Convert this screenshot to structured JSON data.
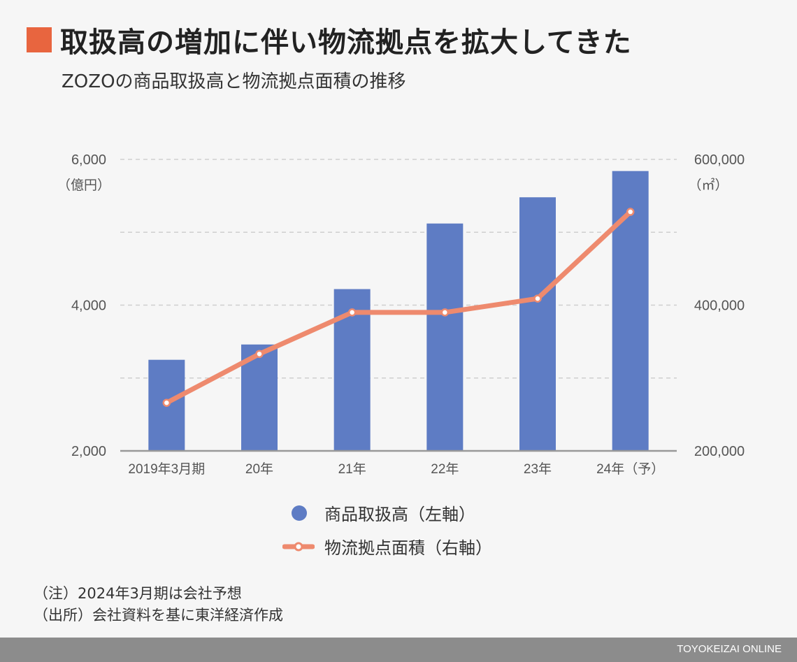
{
  "header": {
    "title": "取扱高の増加に伴い物流拠点を拡大してきた",
    "subtitle": "ZOZOの商品取扱高と物流拠点面積の推移"
  },
  "chart_data": {
    "type": "bar",
    "categories": [
      "2019年3月期",
      "20年",
      "21年",
      "22年",
      "23年",
      "24年（予）"
    ],
    "series": [
      {
        "name": "商品取扱高（左軸）",
        "type": "bar",
        "axis": "left",
        "color": "#5e7cc4",
        "values": [
          3250,
          3460,
          4220,
          5120,
          5480,
          5840
        ]
      },
      {
        "name": "物流拠点面積（右軸）",
        "type": "line",
        "axis": "right",
        "color": "#ee8a6e",
        "values": [
          266000,
          333000,
          390000,
          390000,
          409000,
          528000
        ]
      }
    ],
    "y_left": {
      "unit": "（億円）",
      "ylim": [
        2000,
        6000
      ],
      "ticks": [
        "2,000",
        "4,000",
        "6,000"
      ],
      "tick_values": [
        2000,
        4000,
        6000
      ],
      "grid_values": [
        3000,
        4000,
        5000,
        6000
      ]
    },
    "y_right": {
      "unit": "（㎡）",
      "ylim": [
        200000,
        600000
      ],
      "ticks": [
        "200,000",
        "400,000",
        "600,000"
      ],
      "tick_values": [
        200000,
        400000,
        600000
      ]
    },
    "grid": true,
    "legend_position": "bottom"
  },
  "notes": {
    "note": "（注）2024年3月期は会社予想",
    "source": "（出所）会社資料を基に東洋経済作成"
  },
  "footer": {
    "brand": "TOYOKEIZAI ONLINE"
  }
}
